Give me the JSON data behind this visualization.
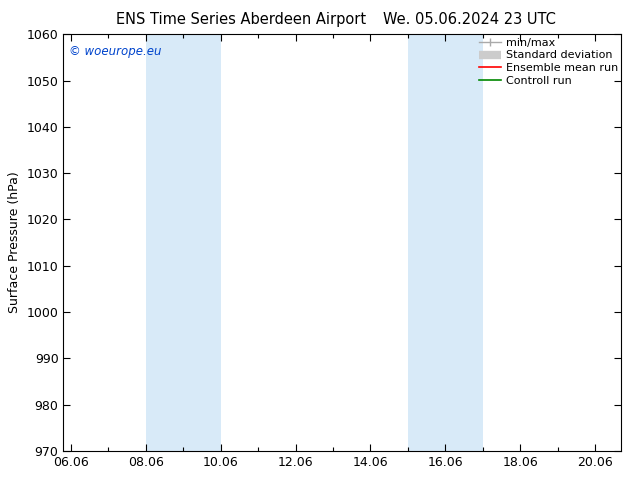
{
  "title_left": "ENS Time Series Aberdeen Airport",
  "title_right": "We. 05.06.2024 23 UTC",
  "ylabel": "Surface Pressure (hPa)",
  "ylim": [
    970,
    1060
  ],
  "yticks": [
    970,
    980,
    990,
    1000,
    1010,
    1020,
    1030,
    1040,
    1050,
    1060
  ],
  "xtick_labels": [
    "06.06",
    "08.06",
    "10.06",
    "12.06",
    "14.06",
    "16.06",
    "18.06",
    "20.06"
  ],
  "xtick_positions": [
    0,
    2,
    4,
    6,
    8,
    10,
    12,
    14
  ],
  "xlim": [
    -0.2,
    14.7
  ],
  "shaded_bands": [
    {
      "xmin": 2.0,
      "xmax": 4.0
    },
    {
      "xmin": 9.0,
      "xmax": 11.0
    }
  ],
  "shade_color": "#d8eaf8",
  "watermark": "© woeurope.eu",
  "legend_entries": [
    "min/max",
    "Standard deviation",
    "Ensemble mean run",
    "Controll run"
  ],
  "legend_line_colors": [
    "#aaaaaa",
    "#cccccc",
    "#ff0000",
    "#008800"
  ],
  "background_color": "#ffffff",
  "title_fontsize": 10.5,
  "axis_label_fontsize": 9,
  "tick_fontsize": 9,
  "watermark_fontsize": 8.5,
  "legend_fontsize": 8
}
